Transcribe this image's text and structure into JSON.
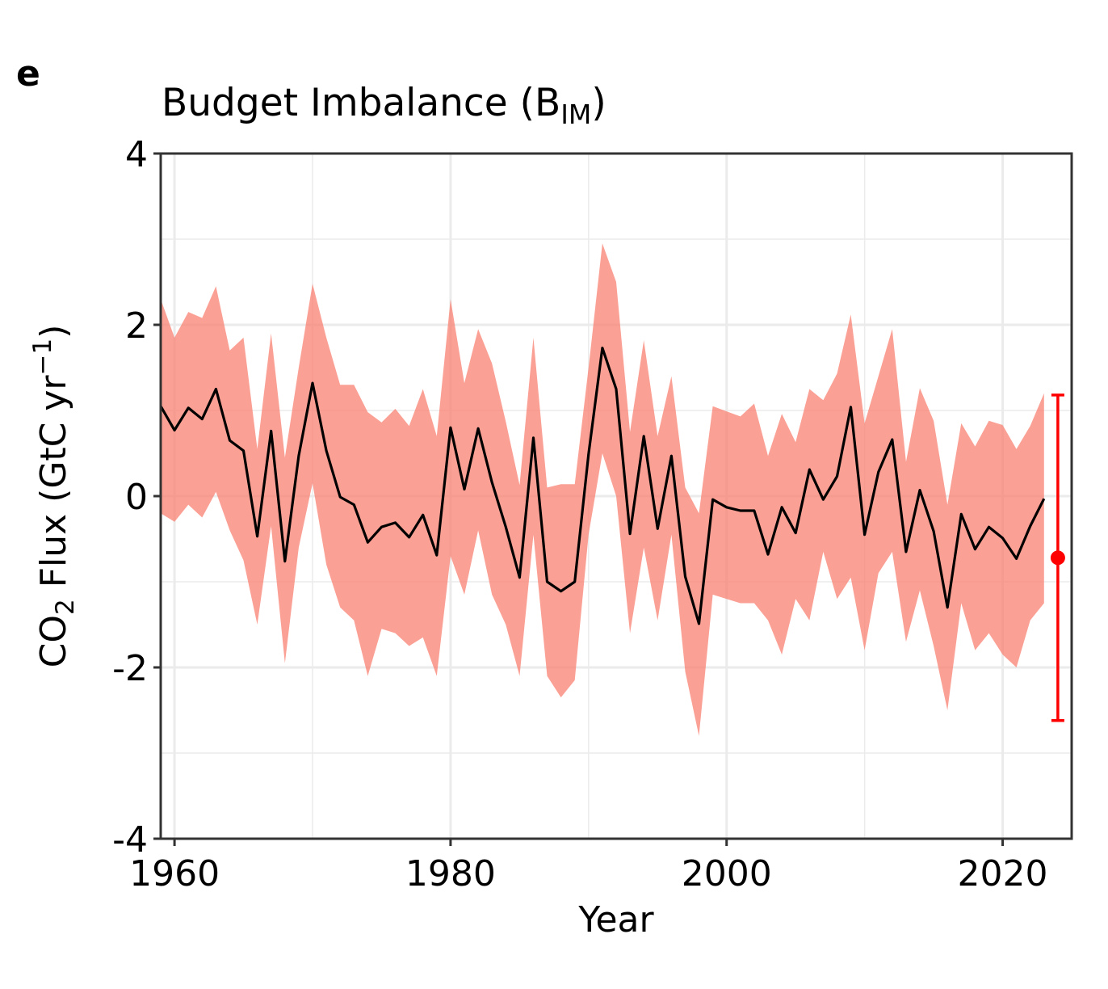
{
  "panel_label": "e",
  "title": {
    "main": "Budget Imbalance (B",
    "sub": "IM",
    "close": ")"
  },
  "ylabel": {
    "p1": "CO",
    "sub": "2",
    "p2": " Flux (GtC yr",
    "sup": "−1",
    "p3": ")"
  },
  "xlabel": "Year",
  "colors": {
    "band": "#FA8072",
    "line": "#000000",
    "errorbar": "#FF0000",
    "grid": "#EBEBEB",
    "frame": "#333333"
  },
  "chart_data": {
    "type": "line",
    "title": "Budget Imbalance (B_IM)",
    "xlabel": "Year",
    "ylabel": "CO2 Flux (GtC yr-1)",
    "xlim": [
      1959,
      2025
    ],
    "ylim": [
      -4,
      4
    ],
    "x_ticks": [
      1960,
      1980,
      2000,
      2020
    ],
    "x_tick_labels": [
      "1960",
      "1980",
      "2000",
      "2020"
    ],
    "y_ticks": [
      -4,
      -2,
      0,
      2,
      4
    ],
    "y_tick_labels": [
      "-4",
      "-2",
      "0",
      "2",
      "4"
    ],
    "grid": true,
    "series": [
      {
        "kind": "line",
        "x": [
          1959,
          1960,
          1961,
          1962,
          1963,
          1964,
          1965,
          1966,
          1967,
          1968,
          1969,
          1970,
          1971,
          1972,
          1973,
          1974,
          1975,
          1976,
          1977,
          1978,
          1979,
          1980,
          1981,
          1982,
          1983,
          1984,
          1985,
          1986,
          1987,
          1988,
          1989,
          1990,
          1991,
          1992,
          1993,
          1994,
          1995,
          1996,
          1997,
          1998,
          1999,
          2000,
          2001,
          2002,
          2003,
          2004,
          2005,
          2006,
          2007,
          2008,
          2009,
          2010,
          2011,
          2012,
          2013,
          2014,
          2015,
          2016,
          2017,
          2018,
          2019,
          2020,
          2021,
          2022,
          2023
        ],
        "y": [
          1.05,
          0.77,
          1.03,
          0.9,
          1.25,
          0.65,
          0.53,
          -0.47,
          0.76,
          -0.76,
          0.47,
          1.32,
          0.53,
          -0.01,
          -0.1,
          -0.54,
          -0.36,
          -0.31,
          -0.48,
          -0.22,
          -0.69,
          0.8,
          0.08,
          0.79,
          0.16,
          -0.36,
          -0.95,
          0.68,
          -1.0,
          -1.11,
          -1.0,
          0.49,
          1.73,
          1.25,
          -0.44,
          0.7,
          -0.38,
          0.47,
          -0.94,
          -1.49,
          -0.04,
          -0.13,
          -0.17,
          -0.17,
          -0.68,
          -0.13,
          -0.43,
          0.31,
          -0.04,
          0.23,
          1.04,
          -0.45,
          0.28,
          0.66,
          -0.65,
          0.07,
          -0.41,
          -1.3,
          -0.21,
          -0.62,
          -0.36,
          -0.49,
          -0.73,
          -0.35,
          -0.03
        ]
      },
      {
        "kind": "band",
        "x": [
          1959,
          1960,
          1961,
          1962,
          1963,
          1964,
          1965,
          1966,
          1967,
          1968,
          1969,
          1970,
          1971,
          1972,
          1973,
          1974,
          1975,
          1976,
          1977,
          1978,
          1979,
          1980,
          1981,
          1982,
          1983,
          1984,
          1985,
          1986,
          1987,
          1988,
          1989,
          1990,
          1991,
          1992,
          1993,
          1994,
          1995,
          1996,
          1997,
          1998,
          1999,
          2000,
          2001,
          2002,
          2003,
          2004,
          2005,
          2006,
          2007,
          2008,
          2009,
          2010,
          2011,
          2012,
          2013,
          2014,
          2015,
          2016,
          2017,
          2018,
          2019,
          2020,
          2021,
          2022,
          2023
        ],
        "lower": [
          -0.2,
          -0.3,
          -0.1,
          -0.25,
          0.05,
          -0.4,
          -0.75,
          -1.5,
          -0.35,
          -1.95,
          -0.6,
          0.15,
          -0.8,
          -1.3,
          -1.45,
          -2.1,
          -1.55,
          -1.6,
          -1.75,
          -1.65,
          -2.1,
          -0.7,
          -1.15,
          -0.4,
          -1.15,
          -1.5,
          -2.1,
          -0.45,
          -2.1,
          -2.35,
          -2.15,
          -0.45,
          0.5,
          0.0,
          -1.6,
          -0.6,
          -1.45,
          -0.45,
          -2.05,
          -2.8,
          -1.15,
          -1.2,
          -1.25,
          -1.25,
          -1.45,
          -1.85,
          -1.2,
          -1.45,
          -0.65,
          -1.2,
          -0.95,
          -1.8,
          -0.9,
          -0.65,
          -1.7,
          -1.1,
          -1.75,
          -2.5,
          -1.25,
          -1.8,
          -1.6,
          -1.85,
          -2.0,
          -1.45,
          -1.25
        ],
        "upper": [
          2.3,
          1.85,
          2.15,
          2.08,
          2.45,
          1.7,
          1.85,
          0.55,
          1.9,
          0.45,
          1.5,
          2.48,
          1.85,
          1.3,
          1.3,
          0.98,
          0.86,
          1.02,
          0.82,
          1.25,
          0.7,
          2.3,
          1.32,
          1.95,
          1.55,
          0.87,
          0.13,
          1.85,
          0.1,
          0.14,
          0.14,
          1.5,
          2.95,
          2.5,
          0.75,
          1.82,
          0.7,
          1.4,
          0.1,
          -0.2,
          1.05,
          0.99,
          0.93,
          1.08,
          0.47,
          0.96,
          0.63,
          1.25,
          1.12,
          1.43,
          2.12,
          0.85,
          1.4,
          1.95,
          0.4,
          1.26,
          0.88,
          -0.1,
          0.85,
          0.58,
          0.88,
          0.83,
          0.55,
          0.82,
          1.2
        ]
      },
      {
        "kind": "errorbar",
        "x": 2024,
        "y": -0.72,
        "lower": -2.62,
        "upper": 1.18
      }
    ]
  }
}
